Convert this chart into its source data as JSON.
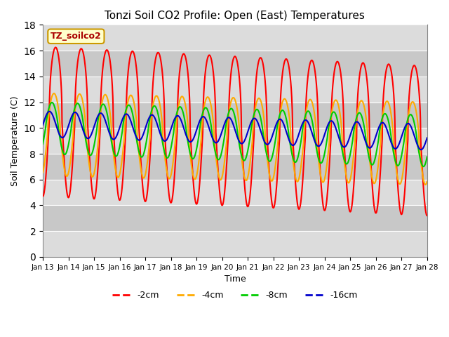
{
  "title": "Tonzi Soil CO2 Profile: Open (East) Temperatures",
  "xlabel": "Time",
  "ylabel": "Soil Temperature (C)",
  "ylim": [
    0,
    18
  ],
  "yticks": [
    0,
    2,
    4,
    6,
    8,
    10,
    12,
    14,
    16,
    18
  ],
  "background_color": "#ffffff",
  "plot_bg_color": "#dcdcdc",
  "grid_band_light": "#dcdcdc",
  "grid_band_dark": "#c8c8c8",
  "legend_label": "TZ_soilco2",
  "legend_box_color": "#ffffcc",
  "legend_box_edge": "#cc9900",
  "series_labels": [
    "-2cm",
    "-4cm",
    "-8cm",
    "-16cm"
  ],
  "series_colors": [
    "#ff0000",
    "#ffaa00",
    "#00cc00",
    "#0000cc"
  ],
  "line_width": 1.5,
  "tick_labels": [
    "Jan 13",
    "Jan 14",
    "Jan 15",
    "Jan 16",
    "Jan 17",
    "Jan 18",
    "Jan 19",
    "Jan 20",
    "Jan 21",
    "Jan 22",
    "Jan 23",
    "Jan 24",
    "Jan 25",
    "Jan 26",
    "Jan 27",
    "Jan 28"
  ],
  "figsize": [
    6.4,
    4.8
  ],
  "dpi": 100
}
